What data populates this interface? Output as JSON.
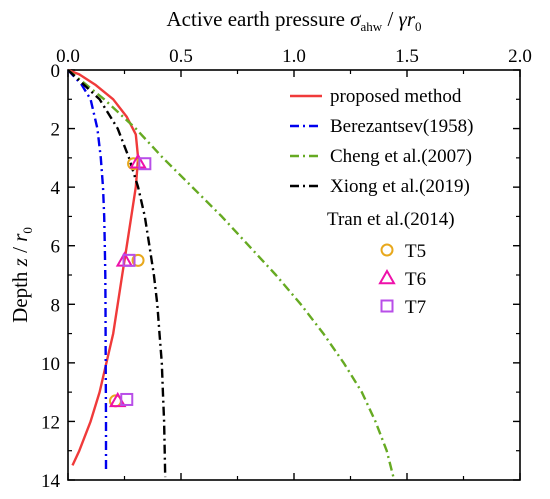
{
  "chart_data": {
    "type": "line",
    "x_axis": {
      "position": "top",
      "label_main": "Active earth pressure ",
      "label_sigma": "σ",
      "label_sub": "ahw",
      "label_mid": " / ",
      "label_gamma": "γr",
      "label_sub0": "0",
      "range": [
        0,
        2
      ],
      "ticks": [
        0,
        0.5,
        1,
        1.5,
        2
      ],
      "tick_labels": [
        "0.0",
        "0.5",
        "1.0",
        "1.5",
        "2.0"
      ]
    },
    "y_axis": {
      "inverted": true,
      "label_main": "Depth ",
      "label_z": "z",
      "label_mid": " / ",
      "label_r": "r",
      "label_sub0": "0",
      "range": [
        0,
        14
      ],
      "ticks": [
        0,
        2,
        4,
        6,
        8,
        10,
        12,
        14
      ],
      "tick_labels": [
        "0",
        "2",
        "4",
        "6",
        "8",
        "10",
        "12",
        "14"
      ]
    },
    "series": [
      {
        "name": "proposed method",
        "kind": "line",
        "color": "#f03a3a",
        "dash": "solid",
        "points": [
          [
            0,
            0
          ],
          [
            0.05,
            0.15
          ],
          [
            0.12,
            0.5
          ],
          [
            0.2,
            1.0
          ],
          [
            0.26,
            1.6
          ],
          [
            0.3,
            2.2
          ],
          [
            0.31,
            3.0
          ],
          [
            0.3,
            4.0
          ],
          [
            0.28,
            5.0
          ],
          [
            0.26,
            6.0
          ],
          [
            0.24,
            7.0
          ],
          [
            0.22,
            8.0
          ],
          [
            0.2,
            9.0
          ],
          [
            0.17,
            10.0
          ],
          [
            0.14,
            11.0
          ],
          [
            0.1,
            12.0
          ],
          [
            0.05,
            13.0
          ],
          [
            0.02,
            13.5
          ]
        ]
      },
      {
        "name": "Berezantsev(1958)",
        "kind": "line",
        "color": "#0000ee",
        "dash": "dashdot",
        "points": [
          [
            0,
            0
          ],
          [
            0.06,
            0.5
          ],
          [
            0.1,
            1.0
          ],
          [
            0.13,
            2.0
          ],
          [
            0.145,
            3.0
          ],
          [
            0.155,
            4.0
          ],
          [
            0.16,
            5.0
          ],
          [
            0.163,
            6.0
          ],
          [
            0.165,
            7.0
          ],
          [
            0.166,
            8.0
          ],
          [
            0.167,
            10.0
          ],
          [
            0.168,
            12.0
          ],
          [
            0.168,
            13.7
          ]
        ]
      },
      {
        "name": "Cheng et al.(2007)",
        "kind": "line",
        "color": "#66aa22",
        "dash": "dashdot",
        "points": [
          [
            0,
            0
          ],
          [
            0.08,
            0.5
          ],
          [
            0.16,
            1.0
          ],
          [
            0.3,
            2.0
          ],
          [
            0.42,
            3.0
          ],
          [
            0.55,
            4.0
          ],
          [
            0.68,
            5.0
          ],
          [
            0.8,
            6.0
          ],
          [
            0.92,
            7.0
          ],
          [
            1.03,
            8.0
          ],
          [
            1.13,
            9.0
          ],
          [
            1.22,
            10.0
          ],
          [
            1.3,
            11.0
          ],
          [
            1.36,
            12.0
          ],
          [
            1.41,
            13.0
          ],
          [
            1.44,
            13.9
          ]
        ]
      },
      {
        "name": "Xiong et al.(2019)",
        "kind": "line",
        "color": "#000000",
        "dash": "dashdot",
        "points": [
          [
            0,
            0
          ],
          [
            0.07,
            0.5
          ],
          [
            0.14,
            1.0
          ],
          [
            0.22,
            2.0
          ],
          [
            0.27,
            3.0
          ],
          [
            0.31,
            4.0
          ],
          [
            0.34,
            5.0
          ],
          [
            0.36,
            6.0
          ],
          [
            0.38,
            7.0
          ],
          [
            0.395,
            8.0
          ],
          [
            0.405,
            9.0
          ],
          [
            0.415,
            10.0
          ],
          [
            0.42,
            11.0
          ],
          [
            0.425,
            12.0
          ],
          [
            0.428,
            13.0
          ],
          [
            0.43,
            13.9
          ]
        ]
      },
      {
        "name": "T5",
        "kind": "marker",
        "marker": "circle",
        "color": "#e8a81c",
        "points": [
          [
            0.29,
            3.2
          ],
          [
            0.31,
            6.5
          ],
          [
            0.21,
            11.3
          ]
        ]
      },
      {
        "name": "T6",
        "kind": "marker",
        "marker": "triangle",
        "color": "#ee11aa",
        "points": [
          [
            0.31,
            3.15
          ],
          [
            0.25,
            6.5
          ],
          [
            0.22,
            11.3
          ]
        ]
      },
      {
        "name": "T7",
        "kind": "marker",
        "marker": "square",
        "color": "#b84ee8",
        "points": [
          [
            0.34,
            3.2
          ],
          [
            0.27,
            6.5
          ],
          [
            0.26,
            11.25
          ]
        ]
      }
    ],
    "legend": {
      "placement": "top-right",
      "group_title": "Tran et al.(2014)"
    }
  }
}
